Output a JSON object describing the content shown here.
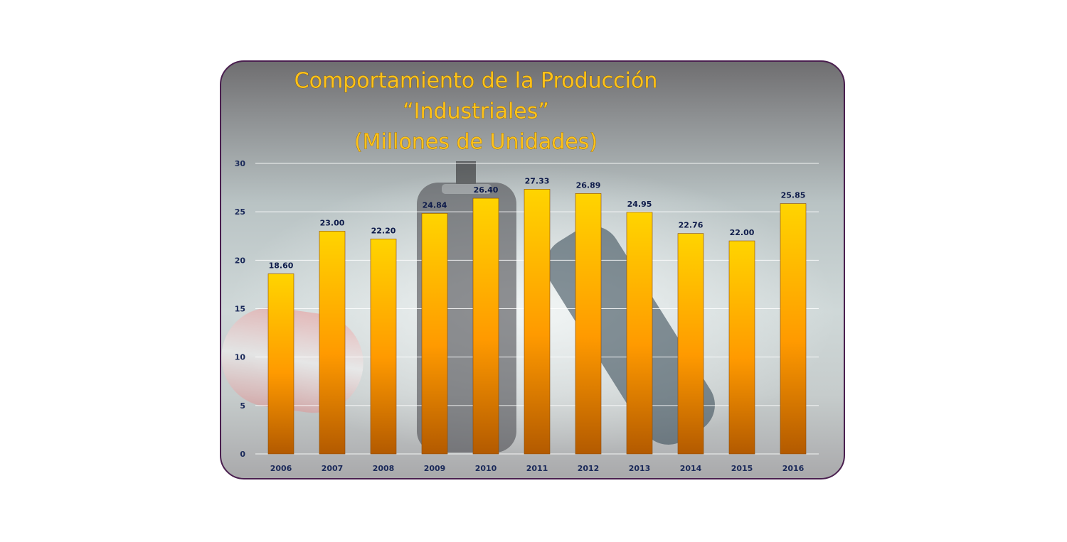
{
  "chart_data": {
    "type": "bar",
    "title_lines": [
      "Comportamiento de la Producción",
      "“Industriales”",
      "(Millones de Unidades)"
    ],
    "categories": [
      "2006",
      "2007",
      "2008",
      "2009",
      "2010",
      "2011",
      "2012",
      "2013",
      "2014",
      "2015",
      "2016"
    ],
    "values": [
      18.6,
      23.0,
      22.2,
      24.84,
      26.4,
      27.33,
      26.89,
      24.95,
      22.76,
      22.0,
      25.85
    ],
    "value_labels": [
      "18.60",
      "23.00",
      "22.20",
      "24.84",
      "26.40",
      "27.33",
      "26.89",
      "24.95",
      "22.76",
      "22.00",
      "25.85"
    ],
    "ylim": [
      0,
      30
    ],
    "yticks": [
      0,
      5,
      10,
      15,
      20,
      25,
      30
    ],
    "ytick_labels": [
      "0",
      "5",
      "10",
      "15",
      "20",
      "25",
      "30"
    ],
    "grid": true,
    "legend": false,
    "colors": {
      "bar_top": "#ffd400",
      "bar_mid": "#ff9a00",
      "bar_bottom": "#b35a00",
      "title": "#ffc21a",
      "label": "#0e1b4a",
      "border": "#4a1f4f"
    }
  }
}
